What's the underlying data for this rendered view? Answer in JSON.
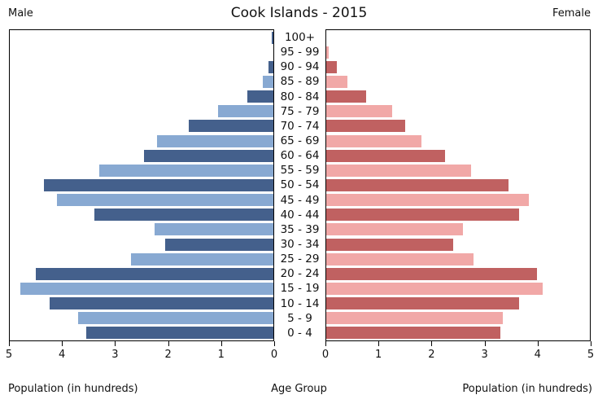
{
  "header": {
    "left": "Male",
    "title": "Cook Islands - 2015",
    "right": "Female"
  },
  "footer": {
    "left": "Population (in hundreds)",
    "center": "Age Group",
    "right": "Population (in hundreds)"
  },
  "colors": {
    "male_dark": "#44608C",
    "male_light": "#88A9D2",
    "female_dark": "#C06161",
    "female_light": "#F1A8A7"
  },
  "axis": {
    "left_ticks": [
      "5",
      "4",
      "3",
      "2",
      "1",
      "0"
    ],
    "right_ticks": [
      "0",
      "1",
      "2",
      "3",
      "4",
      "5"
    ]
  },
  "chart_data": {
    "type": "bar",
    "subtype": "population-pyramid",
    "title": "Cook Islands - 2015",
    "units": "hundreds",
    "xlabel": "Population (in hundreds)",
    "center_axis_label": "Age Group",
    "xlim": [
      0,
      5
    ],
    "x_ticks": [
      0,
      1,
      2,
      3,
      4,
      5
    ],
    "categories_top_to_bottom": [
      "100+",
      "95 - 99",
      "90 - 94",
      "85 - 89",
      "80 - 84",
      "75 - 79",
      "70 - 74",
      "65 - 69",
      "60 - 64",
      "55 - 59",
      "50 - 54",
      "45 - 49",
      "40 - 44",
      "35 - 39",
      "30 - 34",
      "25 - 29",
      "20 - 24",
      "15 - 19",
      "10 - 14",
      "5 - 9",
      "0 - 4"
    ],
    "series": [
      {
        "name": "Male",
        "values": [
          0.03,
          0.0,
          0.1,
          0.2,
          0.5,
          1.05,
          1.6,
          2.2,
          2.45,
          3.3,
          4.35,
          4.1,
          3.4,
          2.25,
          2.05,
          2.7,
          4.5,
          4.8,
          4.25,
          3.7,
          3.55
        ]
      },
      {
        "name": "Female",
        "values": [
          0.0,
          0.05,
          0.2,
          0.4,
          0.75,
          1.25,
          1.5,
          1.8,
          2.25,
          2.75,
          3.45,
          3.85,
          3.65,
          2.6,
          2.4,
          2.8,
          4.0,
          4.1,
          3.65,
          3.35,
          3.3
        ]
      }
    ],
    "row_shading_top_to_bottom": "alternating dark/light starting dark at 100+"
  }
}
